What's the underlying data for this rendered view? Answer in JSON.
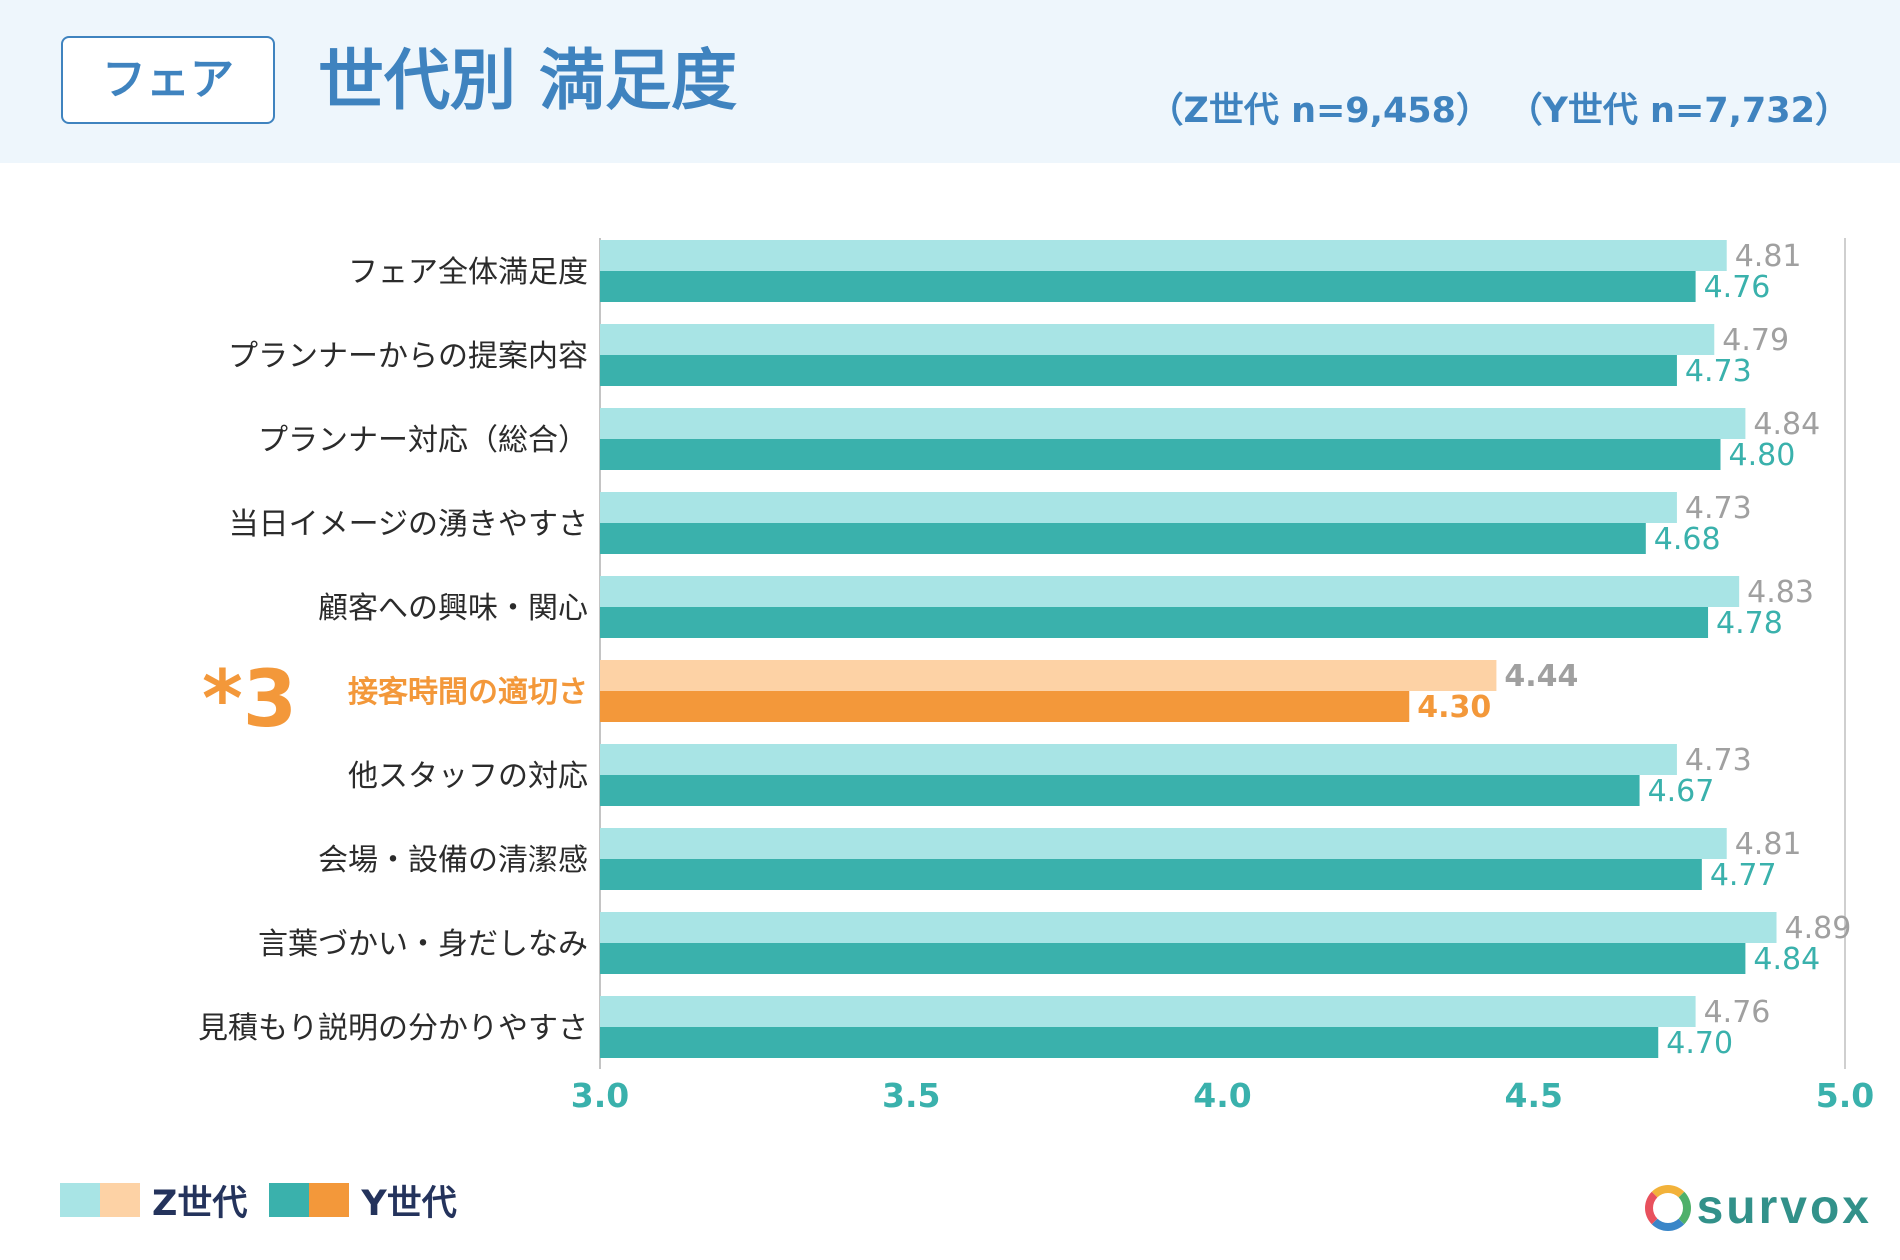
{
  "header": {
    "tag": "フェア",
    "title": "世代別 満足度",
    "sample_z": "（Z世代 n=9,458）",
    "sample_y": "（Y世代 n=7,732）"
  },
  "colors": {
    "z_normal": "#a8e4e5",
    "y_normal": "#3ab1ac",
    "z_highlight": "#fdd2a5",
    "y_highlight": "#f3983a",
    "label_text": "#2b2b2b",
    "highlight_text": "#f3983a",
    "z_value_text": "#a0a0a0",
    "y_value_text": "#3ab1ac",
    "axis_tick_text": "#3ab1ac"
  },
  "chart_data": {
    "type": "bar",
    "orientation": "horizontal",
    "categories": [
      "フェア全体満足度",
      "プランナーからの提案内容",
      "プランナー対応（総合）",
      "当日イメージの湧きやすさ",
      "顧客への興味・関心",
      "接客時間の適切さ",
      "他スタッフの対応",
      "会場・設備の清潔感",
      "言葉づかい・身だしなみ",
      "見積もり説明の分かりやすさ"
    ],
    "series": [
      {
        "name": "Z世代",
        "values": [
          4.81,
          4.79,
          4.84,
          4.73,
          4.83,
          4.44,
          4.73,
          4.81,
          4.89,
          4.76
        ]
      },
      {
        "name": "Y世代",
        "values": [
          4.76,
          4.73,
          4.8,
          4.68,
          4.78,
          4.3,
          4.67,
          4.77,
          4.84,
          4.7
        ]
      }
    ],
    "value_labels": {
      "Z世代": [
        "4.81",
        "4.79",
        "4.84",
        "4.73",
        "4.83",
        "4.44",
        "4.73",
        "4.81",
        "4.89",
        "4.76"
      ],
      "Y世代": [
        "4.76",
        "4.73",
        "4.80",
        "4.68",
        "4.78",
        "4.30",
        "4.67",
        "4.77",
        "4.84",
        "4.70"
      ]
    },
    "highlight_index": 5,
    "highlight_mark": "*3",
    "xlim": [
      3.0,
      5.0
    ],
    "xticks": [
      "3.0",
      "3.5",
      "4.0",
      "4.5",
      "5.0"
    ],
    "legend": [
      "Z世代",
      "Y世代"
    ],
    "legend_position": "bottom-left"
  },
  "logo": "survox"
}
